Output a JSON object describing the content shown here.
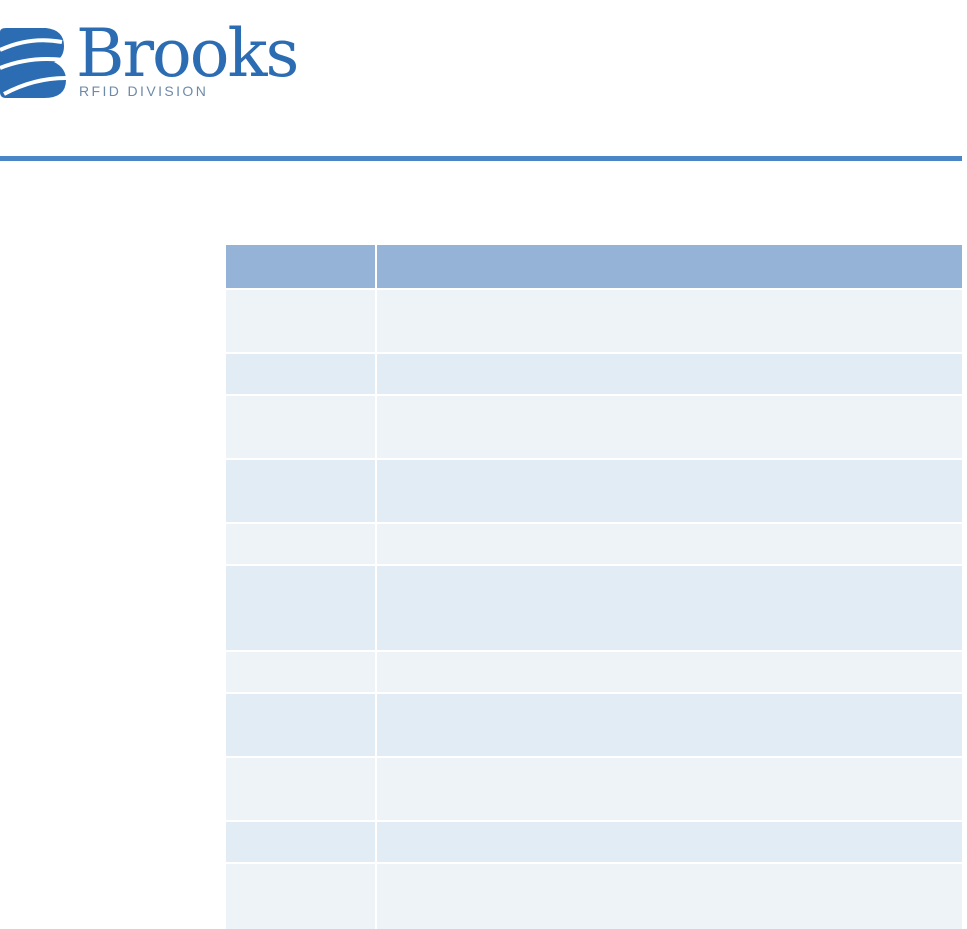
{
  "header": {
    "brand": "Brooks",
    "division": "RFID DIVISION"
  }
}
